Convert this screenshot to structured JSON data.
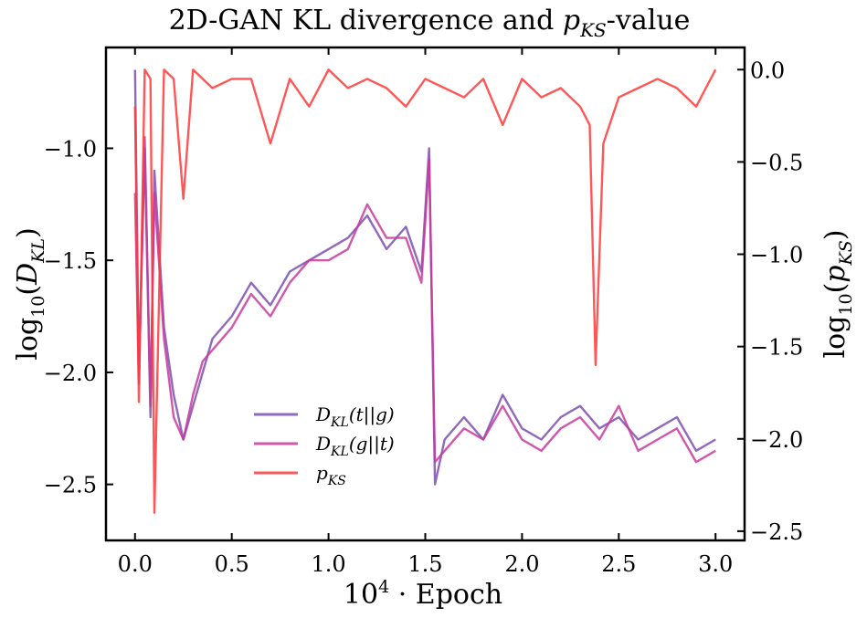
{
  "chart_data": {
    "type": "line",
    "title": "2D-GAN KL divergence and p_KS-value",
    "title_parts": {
      "pre": "2D-GAN KL divergence and ",
      "sym": "p",
      "sub": "KS",
      "post": "-value"
    },
    "xlabel": "10^4 · Epoch",
    "xlabel_parts": {
      "base": "10",
      "sup": "4",
      "rest": " · Epoch"
    },
    "ylabel_left": "log10(D_KL)",
    "ylabel_left_parts": {
      "fn": "log",
      "sub": "10",
      "open": "(",
      "sym": "D",
      "symsub": "KL",
      "close": ")"
    },
    "ylabel_right": "log10(p_KS)",
    "ylabel_right_parts": {
      "fn": "log",
      "sub": "10",
      "open": "(",
      "sym": "p",
      "symsub": "KS",
      "close": ")"
    },
    "xlim": [
      -0.15,
      3.15
    ],
    "ylim_left": [
      -2.75,
      -0.55
    ],
    "ylim_right": [
      -2.55,
      0.12
    ],
    "x_ticks": [
      0.0,
      0.5,
      1.0,
      1.5,
      2.0,
      2.5,
      3.0
    ],
    "x_tick_labels": [
      "0.0",
      "0.5",
      "1.0",
      "1.5",
      "2.0",
      "2.5",
      "3.0"
    ],
    "y_left_ticks": [
      -1.0,
      -1.5,
      -2.0,
      -2.5
    ],
    "y_left_tick_labels": [
      "−1.0",
      "−1.5",
      "−2.0",
      "−2.5"
    ],
    "y_right_ticks": [
      0.0,
      -0.5,
      -1.0,
      -1.5,
      -2.0,
      -2.5
    ],
    "y_right_tick_labels": [
      "0.0",
      "−0.5",
      "−1.0",
      "−1.5",
      "−2.0",
      "−2.5"
    ],
    "legend_position": "lower-left-center",
    "series": [
      {
        "name": "D_KL(t||g)",
        "legend": {
          "sym": "D",
          "sub": "KL",
          "args": "(t||g)"
        },
        "axis": "left",
        "color": "#7b4fb0",
        "x": [
          0,
          0.02,
          0.05,
          0.08,
          0.1,
          0.15,
          0.2,
          0.25,
          0.3,
          0.35,
          0.4,
          0.5,
          0.6,
          0.7,
          0.8,
          0.9,
          1.0,
          1.1,
          1.2,
          1.3,
          1.4,
          1.48,
          1.52,
          1.55,
          1.6,
          1.7,
          1.8,
          1.9,
          2.0,
          2.1,
          2.2,
          2.3,
          2.4,
          2.5,
          2.6,
          2.7,
          2.8,
          2.9,
          3.0
        ],
        "y": [
          -0.65,
          -2.0,
          -1.0,
          -2.2,
          -1.1,
          -1.8,
          -2.1,
          -2.3,
          -2.15,
          -2.0,
          -1.85,
          -1.75,
          -1.6,
          -1.7,
          -1.55,
          -1.5,
          -1.45,
          -1.4,
          -1.3,
          -1.45,
          -1.35,
          -1.55,
          -1.0,
          -2.5,
          -2.3,
          -2.2,
          -2.3,
          -2.1,
          -2.25,
          -2.3,
          -2.2,
          -2.15,
          -2.25,
          -2.2,
          -2.3,
          -2.25,
          -2.2,
          -2.35,
          -2.3
        ]
      },
      {
        "name": "D_KL(g||t)",
        "legend": {
          "sym": "D",
          "sub": "KL",
          "args": "(g||t)"
        },
        "axis": "left",
        "color": "#c8399c",
        "x": [
          0,
          0.02,
          0.05,
          0.08,
          0.1,
          0.15,
          0.2,
          0.25,
          0.3,
          0.35,
          0.4,
          0.5,
          0.6,
          0.7,
          0.8,
          0.9,
          1.0,
          1.1,
          1.2,
          1.3,
          1.4,
          1.48,
          1.52,
          1.55,
          1.6,
          1.7,
          1.8,
          1.9,
          2.0,
          2.1,
          2.2,
          2.3,
          2.4,
          2.5,
          2.6,
          2.7,
          2.8,
          2.9,
          3.0
        ],
        "y": [
          -1.2,
          -2.05,
          -0.95,
          -2.15,
          -1.2,
          -1.85,
          -2.2,
          -2.3,
          -2.1,
          -1.95,
          -1.9,
          -1.8,
          -1.65,
          -1.75,
          -1.6,
          -1.5,
          -1.5,
          -1.45,
          -1.25,
          -1.4,
          -1.4,
          -1.6,
          -1.05,
          -2.4,
          -2.35,
          -2.25,
          -2.3,
          -2.15,
          -2.3,
          -2.35,
          -2.25,
          -2.2,
          -2.3,
          -2.15,
          -2.35,
          -2.3,
          -2.25,
          -2.4,
          -2.35
        ]
      },
      {
        "name": "p_KS",
        "legend": {
          "sym": "p",
          "sub": "KS",
          "args": ""
        },
        "axis": "right",
        "color": "#ff3a3a",
        "x": [
          0,
          0.02,
          0.05,
          0.08,
          0.1,
          0.15,
          0.2,
          0.25,
          0.3,
          0.4,
          0.5,
          0.6,
          0.7,
          0.8,
          0.9,
          1.0,
          1.1,
          1.2,
          1.3,
          1.4,
          1.5,
          1.6,
          1.7,
          1.8,
          1.9,
          2.0,
          2.1,
          2.2,
          2.3,
          2.35,
          2.38,
          2.42,
          2.5,
          2.6,
          2.7,
          2.8,
          2.9,
          3.0
        ],
        "y": [
          -0.2,
          -1.8,
          0.0,
          -0.05,
          -2.4,
          0.0,
          -0.05,
          -0.7,
          0.0,
          -0.1,
          -0.05,
          -0.05,
          -0.4,
          -0.05,
          -0.2,
          0.0,
          -0.1,
          -0.05,
          -0.1,
          -0.2,
          -0.05,
          -0.1,
          -0.15,
          -0.05,
          -0.3,
          -0.05,
          -0.15,
          -0.1,
          -0.2,
          -0.3,
          -1.6,
          -0.4,
          -0.15,
          -0.1,
          -0.05,
          -0.1,
          -0.2,
          0.0
        ]
      }
    ]
  }
}
